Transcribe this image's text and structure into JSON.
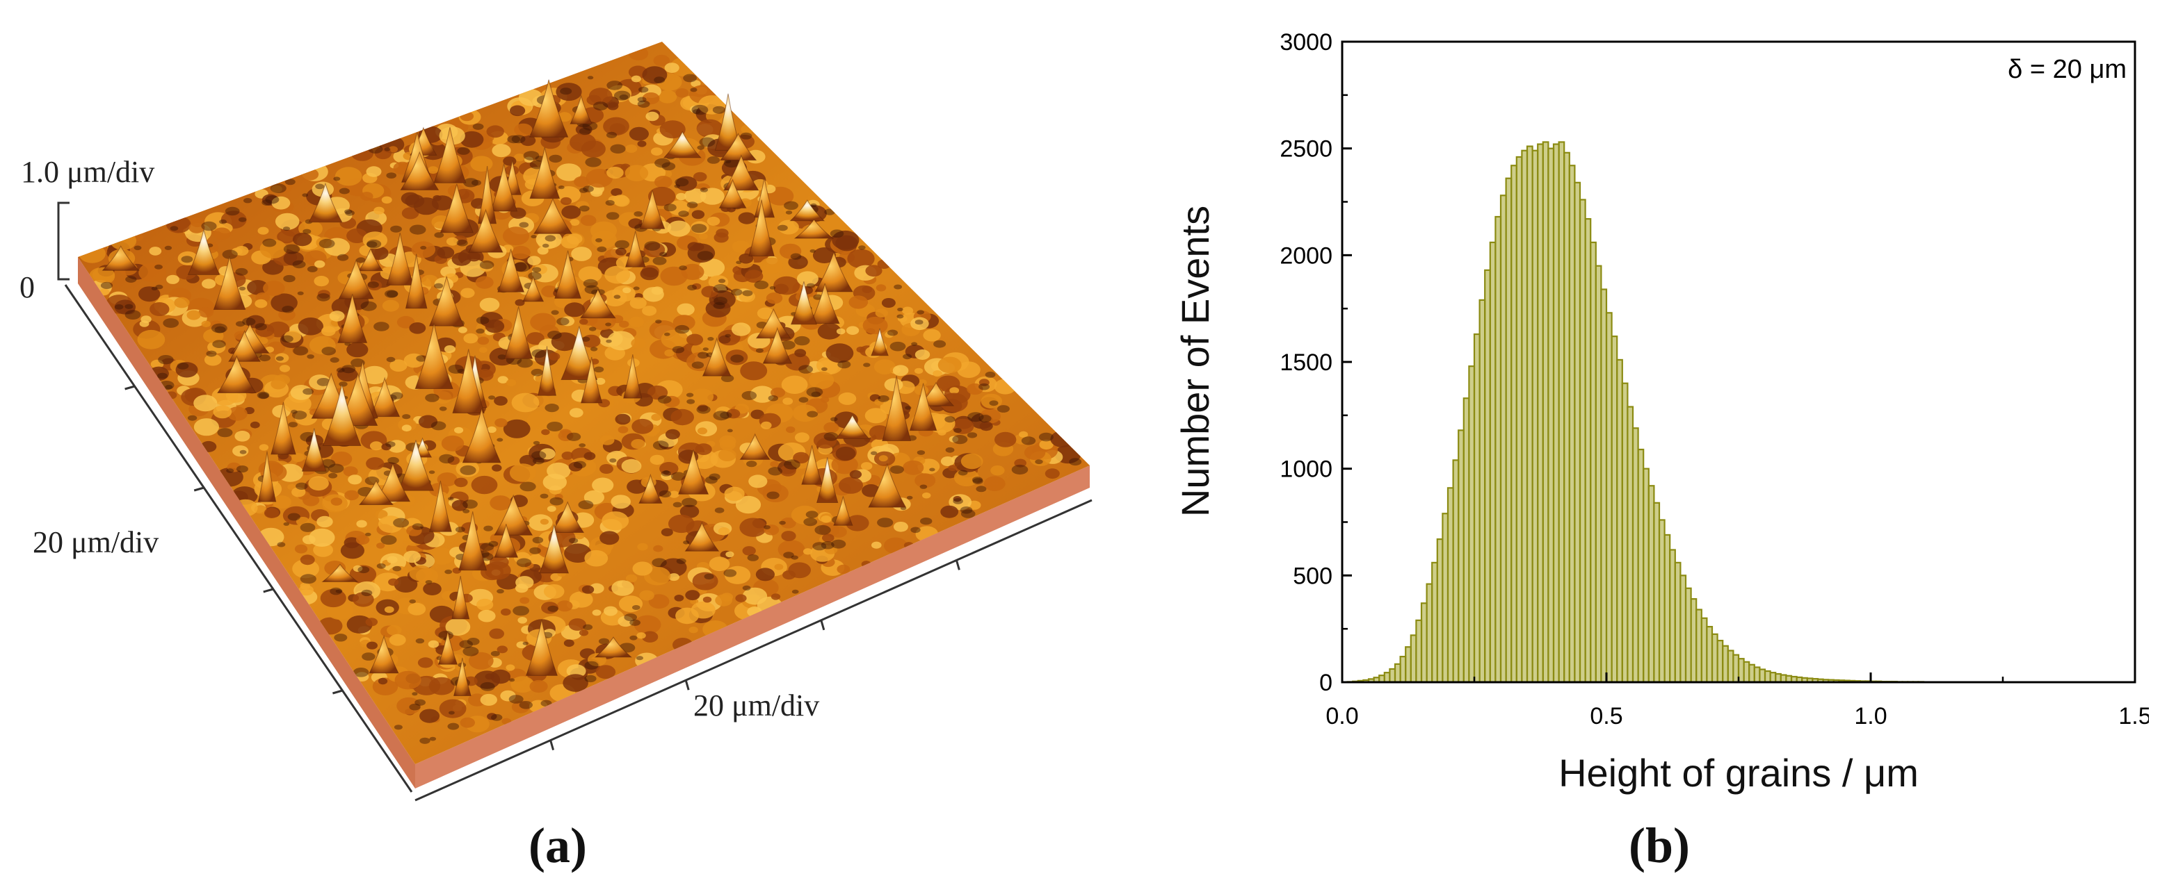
{
  "panel_a": {
    "label": "(a)",
    "z_scale_label": "1.0 μm/div",
    "z_zero_label": "0",
    "y_scale_label": "20 μm/div",
    "x_scale_label": "20 μm/div",
    "colors": {
      "surface_dark": "#8a3a0a",
      "surface_mid": "#d9780f",
      "surface_light": "#f7c04a",
      "peak": "#fbf3e8",
      "base": "#d47a52"
    }
  },
  "panel_b": {
    "label": "(b)",
    "annotation": "δ = 20 μm",
    "bar_color": "#8b8b12"
  },
  "chart_data": {
    "type": "bar",
    "title": "",
    "xlabel": "Height of grains / μm",
    "ylabel": "Number of Events",
    "xlim": [
      0.0,
      1.5
    ],
    "ylim": [
      0,
      3000
    ],
    "xticks": [
      "0.0",
      "0.5",
      "1.0",
      "1.5"
    ],
    "yticks": [
      "0",
      "500",
      "1000",
      "1500",
      "2000",
      "2500",
      "3000"
    ],
    "bin_width": 0.01,
    "bin_start": 0.0,
    "annotation": "δ = 20 μm",
    "counts": [
      0,
      2,
      4,
      7,
      10,
      15,
      22,
      32,
      45,
      62,
      85,
      120,
      165,
      220,
      290,
      370,
      460,
      560,
      670,
      790,
      910,
      1040,
      1180,
      1330,
      1480,
      1630,
      1790,
      1930,
      2060,
      2180,
      2280,
      2360,
      2420,
      2460,
      2490,
      2510,
      2490,
      2520,
      2530,
      2500,
      2520,
      2530,
      2480,
      2420,
      2340,
      2260,
      2170,
      2060,
      1950,
      1840,
      1730,
      1620,
      1510,
      1400,
      1290,
      1190,
      1090,
      1000,
      920,
      840,
      760,
      690,
      620,
      560,
      500,
      440,
      390,
      340,
      300,
      260,
      225,
      195,
      170,
      148,
      128,
      110,
      95,
      82,
      70,
      60,
      52,
      45,
      39,
      34,
      30,
      26,
      23,
      20,
      18,
      16,
      14,
      12,
      11,
      10,
      9,
      8,
      7,
      6,
      5,
      5,
      4,
      4,
      3,
      3,
      3,
      2,
      2,
      2,
      2,
      2,
      1,
      1,
      1,
      1,
      1,
      1,
      1,
      1,
      1,
      1,
      1,
      1,
      1,
      1,
      1,
      1,
      1,
      1,
      1,
      1,
      1,
      0,
      0,
      0,
      0
    ]
  }
}
